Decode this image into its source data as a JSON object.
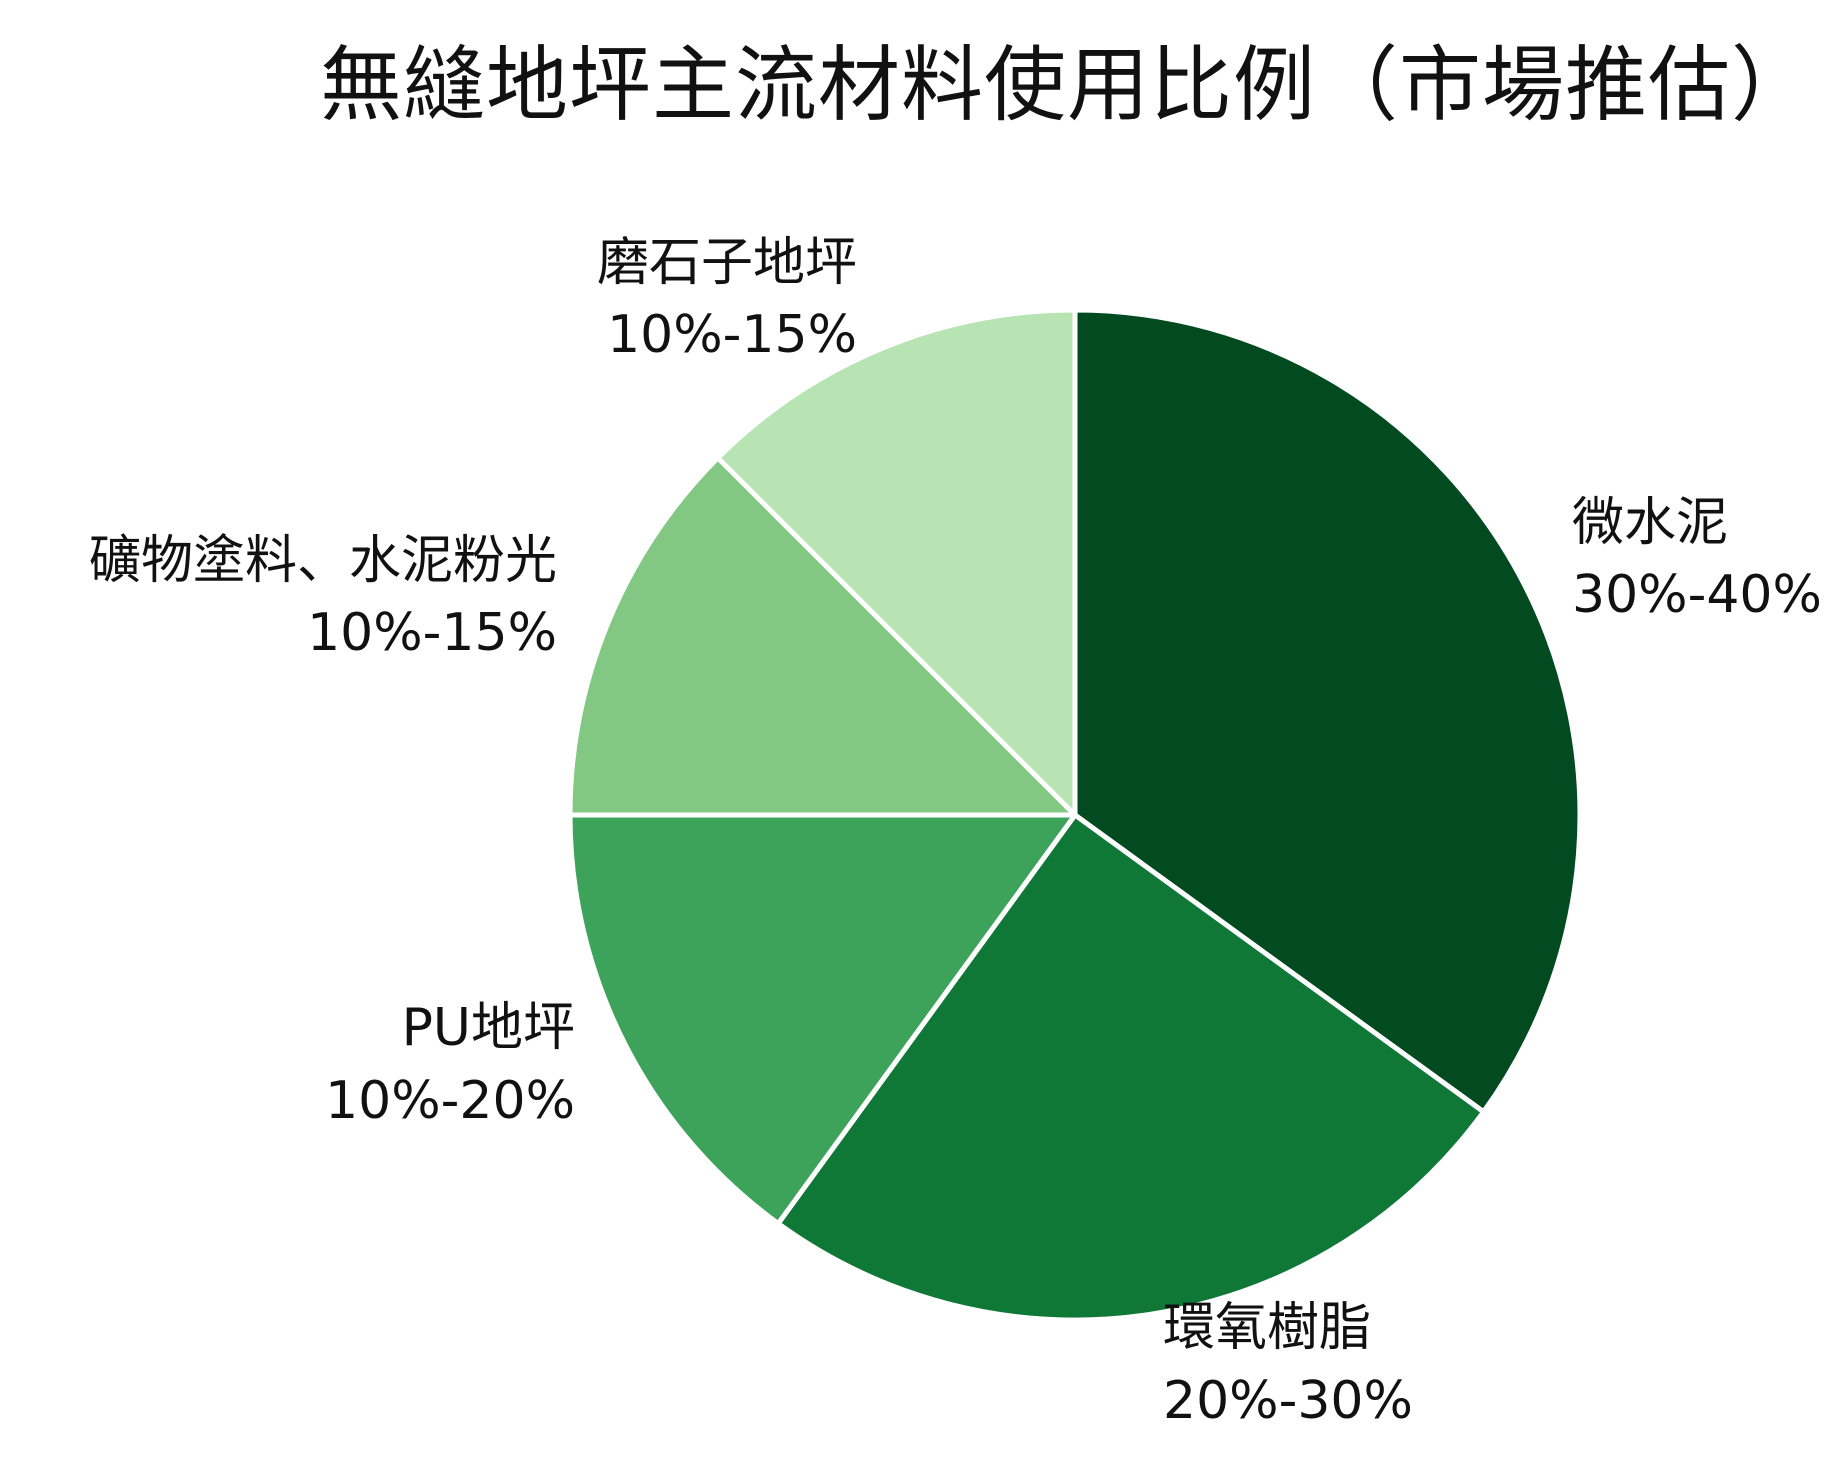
{
  "chart_data": {
    "type": "pie",
    "title": "無縫地坪主流材料使用比例（市場推估）",
    "start_angle_deg": 0,
    "direction": "clockwise",
    "slice_border_color": "#ffffff",
    "slices": [
      {
        "label": "微水泥",
        "range": "30%-40%",
        "value": 35,
        "color": "#024a1f"
      },
      {
        "label": "環氧樹脂",
        "range": "20%-30%",
        "value": 25,
        "color": "#0f7837"
      },
      {
        "label": "PU地坪",
        "range": "10%-20%",
        "value": 15,
        "color": "#3da35a"
      },
      {
        "label": "礦物塗料、水泥粉光",
        "range": "10%-15%",
        "value": 12.5,
        "color": "#82c882"
      },
      {
        "label": "磨石子地坪",
        "range": "10%-15%",
        "value": 12.5,
        "color": "#b8e3b2"
      }
    ]
  }
}
